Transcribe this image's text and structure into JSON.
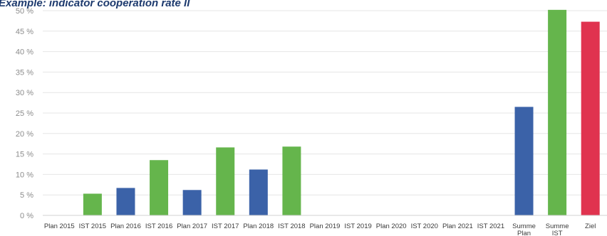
{
  "chart_data": {
    "type": "bar",
    "title": "Example: indicator cooperation rate II",
    "xlabel": "",
    "ylabel": "",
    "ylim": [
      0,
      50
    ],
    "ytick_labels": [
      "0 %",
      "5 %",
      "10 %",
      "15 %",
      "20 %",
      "25 %",
      "30 %",
      "35 %",
      "40 %",
      "45 %",
      "50 %"
    ],
    "grid": true,
    "legend": "none",
    "colors": {
      "plan": "#3b62a8",
      "ist": "#65b54c",
      "ziel": "#e0334f"
    },
    "categories": [
      [
        "Plan 2015"
      ],
      [
        "IST 2015"
      ],
      [
        "Plan 2016"
      ],
      [
        "IST 2016"
      ],
      [
        "Plan 2017"
      ],
      [
        "IST 2017"
      ],
      [
        "Plan 2018"
      ],
      [
        "IST 2018"
      ],
      [
        "Plan 2019"
      ],
      [
        "IST 2019"
      ],
      [
        "Plan 2020"
      ],
      [
        "IST 2020"
      ],
      [
        "Plan 2021"
      ],
      [
        "IST 2021"
      ],
      [
        "Summe",
        "Plan"
      ],
      [
        "Summe",
        "IST"
      ],
      [
        "Ziel"
      ]
    ],
    "values": [
      null,
      5.3,
      6.7,
      13.5,
      6.2,
      16.6,
      11.2,
      16.8,
      null,
      null,
      null,
      null,
      null,
      null,
      26.5,
      50.2,
      47.3
    ],
    "bar_kinds": [
      "plan",
      "ist",
      "plan",
      "ist",
      "plan",
      "ist",
      "plan",
      "ist",
      "plan",
      "ist",
      "plan",
      "ist",
      "plan",
      "ist",
      "plan",
      "ist",
      "ziel"
    ]
  }
}
